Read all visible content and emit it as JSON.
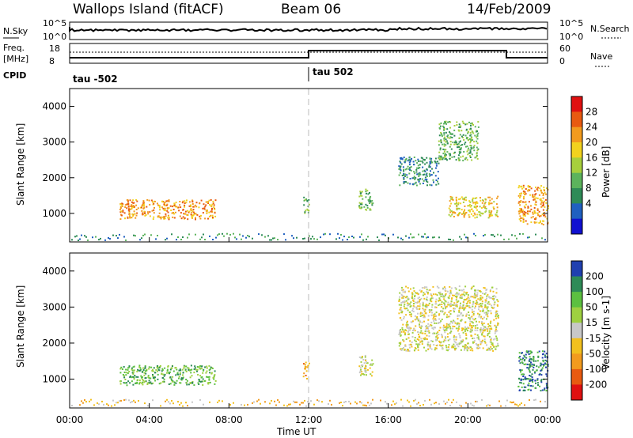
{
  "header": {
    "station": "Wallops Island (fitACF)",
    "beam": "Beam 06",
    "date": "14/Feb/2009"
  },
  "top_panels": {
    "nsky_label": "N.Sky",
    "nsearch_label": "N.Search",
    "nsky_ticks": [
      "10^5",
      "10^0"
    ],
    "nsky_right_ticks": [
      "10^5",
      "10^0"
    ],
    "freq_label": "Freq.",
    "freq_unit": "[MHz]",
    "freq_ticks": [
      "18",
      "8"
    ],
    "nave_label": "Nave",
    "nave_ticks": [
      "60",
      "0"
    ],
    "cpid_label": "CPID",
    "cpid_left": "tau -502",
    "cpid_right": "tau 502"
  },
  "chart_data": [
    {
      "type": "heatmap",
      "panel": "power",
      "ylabel": "Slant Range [km]",
      "xlabel": "",
      "x_ticks": [
        "00:00",
        "04:00",
        "08:00",
        "12:00",
        "16:00",
        "20:00",
        "00:00"
      ],
      "y_ticks": [
        1000,
        2000,
        3000,
        4000
      ],
      "ylim": [
        200,
        4500
      ],
      "xlim_hours": [
        0,
        24
      ],
      "colorbar": {
        "label": "Power [dB]",
        "ticks": [
          28,
          24,
          20,
          16,
          12,
          8,
          4
        ],
        "colors": [
          "#e01010",
          "#e85a10",
          "#f29b1e",
          "#f2d21e",
          "#a7cf3c",
          "#5cb35c",
          "#2e8b57",
          "#2060c0",
          "#1010d0"
        ]
      },
      "echo_regions": [
        {
          "x_hours": [
            2.5,
            7.3
          ],
          "y_km": [
            850,
            1400
          ],
          "level_db": 22
        },
        {
          "x_hours": [
            11.7,
            12.0
          ],
          "y_km": [
            1000,
            1500
          ],
          "level_db": 10
        },
        {
          "x_hours": [
            14.5,
            15.2
          ],
          "y_km": [
            1100,
            1700
          ],
          "level_db": 8
        },
        {
          "x_hours": [
            16.5,
            18.5
          ],
          "y_km": [
            1800,
            2600
          ],
          "level_db": 6
        },
        {
          "x_hours": [
            18.5,
            20.5
          ],
          "y_km": [
            2500,
            3600
          ],
          "level_db": 10
        },
        {
          "x_hours": [
            19.0,
            21.5
          ],
          "y_km": [
            900,
            1500
          ],
          "level_db": 18
        },
        {
          "x_hours": [
            22.5,
            24.0
          ],
          "y_km": [
            700,
            1800
          ],
          "level_db": 20
        }
      ]
    },
    {
      "type": "heatmap",
      "panel": "velocity",
      "ylabel": "Slant Range [km]",
      "xlabel": "Time UT",
      "x_ticks": [
        "00:00",
        "04:00",
        "08:00",
        "12:00",
        "16:00",
        "20:00",
        "00:00"
      ],
      "y_ticks": [
        1000,
        2000,
        3000,
        4000
      ],
      "ylim": [
        200,
        4500
      ],
      "xlim_hours": [
        0,
        24
      ],
      "colorbar": {
        "label": "Velocity [m s-1]",
        "ticks": [
          200,
          100,
          50,
          15,
          -15,
          -50,
          -100,
          -200
        ],
        "colors": [
          "#2040b0",
          "#2e8b57",
          "#5cc040",
          "#9ed040",
          "#c8c8c8",
          "#f2c01e",
          "#f29b1e",
          "#e85a10",
          "#e01010"
        ]
      },
      "echo_regions": [
        {
          "x_hours": [
            2.5,
            7.3
          ],
          "y_km": [
            850,
            1400
          ],
          "velocity": 60
        },
        {
          "x_hours": [
            11.7,
            12.0
          ],
          "y_km": [
            1000,
            1500
          ],
          "velocity": -40
        },
        {
          "x_hours": [
            14.5,
            15.2
          ],
          "y_km": [
            1100,
            1700
          ],
          "velocity": 0
        },
        {
          "x_hours": [
            16.5,
            21.5
          ],
          "y_km": [
            1800,
            3600
          ],
          "velocity": 0
        },
        {
          "x_hours": [
            22.5,
            24.0
          ],
          "y_km": [
            700,
            1800
          ],
          "velocity": 80
        }
      ]
    }
  ],
  "colors": {
    "background": "#ffffff",
    "axis": "#000000",
    "dashed_line": "#bbbbbb"
  }
}
